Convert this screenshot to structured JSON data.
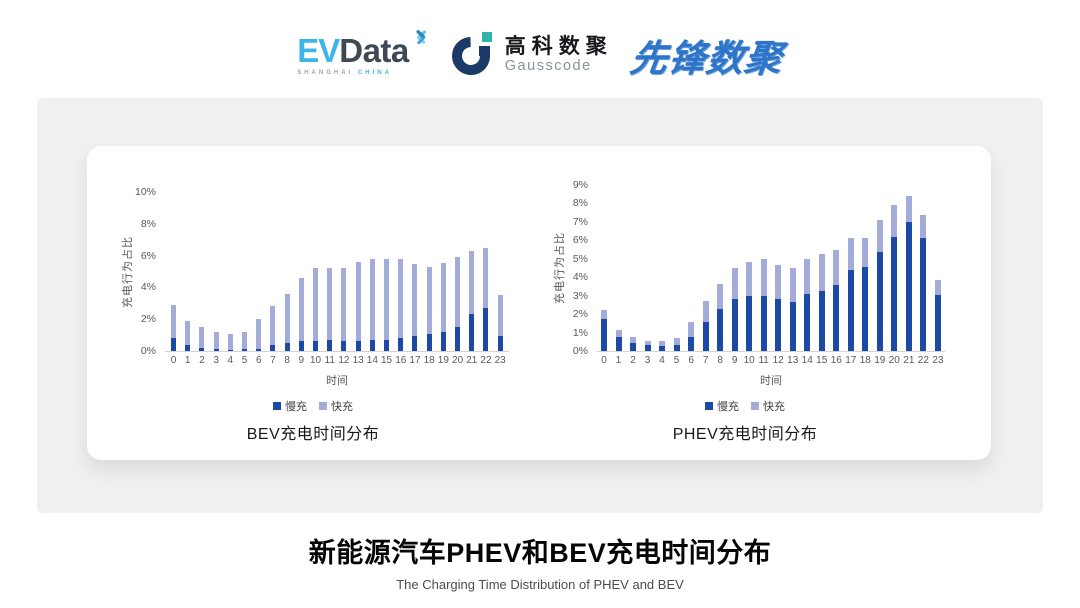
{
  "header": {
    "evdata": {
      "ev": "EV",
      "data": "Data",
      "sub_left": "SHANGHAI",
      "sub_right": "CHINA"
    },
    "gausscode": {
      "cn": "高科数聚",
      "en": "Gausscode"
    },
    "xianfeng": {
      "text": "先锋数聚"
    }
  },
  "colors": {
    "slow_charge": "#1b49a5",
    "fast_charge": "#a3abd9",
    "panel_bg": "#f0f0f0",
    "card_bg": "#ffffff",
    "evdata_blue": "#3db5e6",
    "gausscode_navy": "#1c3a67",
    "gausscode_teal": "#2fb3ab",
    "xianfeng_blue": "#2e74c8"
  },
  "chart_data": [
    {
      "id": "bev",
      "type": "bar",
      "stacked": true,
      "title": "BEV充电时间分布",
      "xlabel": "时间",
      "ylabel": "充电行为占比",
      "ylim": [
        0,
        10
      ],
      "ytick_step": 2,
      "ytick_suffix": "%",
      "grid": false,
      "legend_position": "bottom",
      "categories": [
        "0",
        "1",
        "2",
        "3",
        "4",
        "5",
        "6",
        "7",
        "8",
        "9",
        "10",
        "11",
        "12",
        "13",
        "14",
        "15",
        "16",
        "17",
        "18",
        "19",
        "20",
        "21",
        "22",
        "23"
      ],
      "series": [
        {
          "name": "慢充",
          "color": "#1b49a5",
          "values": [
            0.8,
            0.35,
            0.2,
            0.1,
            0.08,
            0.1,
            0.15,
            0.35,
            0.5,
            0.65,
            0.65,
            0.7,
            0.6,
            0.65,
            0.7,
            0.7,
            0.8,
            0.95,
            1.05,
            1.2,
            1.5,
            2.35,
            2.7,
            0.95
          ]
        },
        {
          "name": "快充",
          "color": "#a3abd9",
          "values": [
            2.1,
            1.55,
            1.3,
            1.1,
            1.0,
            1.1,
            1.85,
            2.45,
            3.1,
            3.95,
            4.55,
            4.5,
            4.6,
            4.95,
            5.1,
            5.1,
            5.0,
            4.5,
            4.25,
            4.35,
            4.4,
            3.95,
            3.8,
            2.6
          ]
        }
      ]
    },
    {
      "id": "phev",
      "type": "bar",
      "stacked": true,
      "title": "PHEV充电时间分布",
      "xlabel": "时间",
      "ylabel": "充电行为占比",
      "ylim": [
        0,
        9
      ],
      "ytick_step": 1,
      "ytick_suffix": "%",
      "grid": false,
      "legend_position": "bottom",
      "categories": [
        "0",
        "1",
        "2",
        "3",
        "4",
        "5",
        "6",
        "7",
        "8",
        "9",
        "10",
        "11",
        "12",
        "13",
        "14",
        "15",
        "16",
        "17",
        "18",
        "19",
        "20",
        "21",
        "22",
        "23"
      ],
      "series": [
        {
          "name": "慢充",
          "color": "#1b49a5",
          "values": [
            1.75,
            0.75,
            0.45,
            0.3,
            0.25,
            0.3,
            0.75,
            1.6,
            2.3,
            2.8,
            3.0,
            3.0,
            2.8,
            2.65,
            3.1,
            3.25,
            3.6,
            4.4,
            4.55,
            5.35,
            6.2,
            7.0,
            6.15,
            3.05
          ]
        },
        {
          "name": "快充",
          "color": "#a3abd9",
          "values": [
            0.45,
            0.4,
            0.3,
            0.25,
            0.3,
            0.4,
            0.85,
            1.1,
            1.35,
            1.7,
            1.8,
            2.0,
            1.85,
            1.85,
            1.9,
            2.0,
            1.9,
            1.75,
            1.6,
            1.75,
            1.7,
            1.4,
            1.2,
            0.8
          ]
        }
      ]
    }
  ],
  "footer": {
    "title": "新能源汽车PHEV和BEV充电时间分布",
    "subtitle": "The Charging Time Distribution of PHEV and BEV"
  }
}
